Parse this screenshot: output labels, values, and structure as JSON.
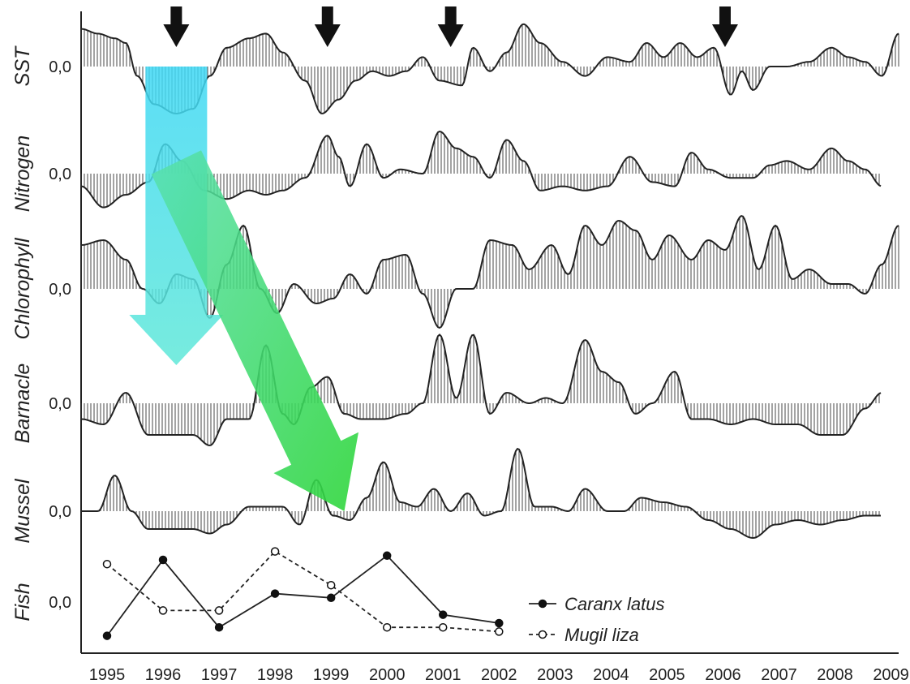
{
  "chart_data": {
    "type": "area",
    "title": "",
    "xlabel": "",
    "ylabel": "",
    "zero_label": "0,0",
    "x_years": [
      "1995",
      "1996",
      "1997",
      "1998",
      "1999",
      "2000",
      "2001",
      "2002",
      "2003",
      "2004",
      "2005",
      "2006",
      "2007",
      "2008",
      "2009"
    ],
    "xlim": [
      1995,
      2009.6
    ],
    "ylim": [
      -1,
      1
    ],
    "arrows_at": [
      1996.7,
      1999.4,
      2001.6,
      2006.5
    ],
    "series": [
      {
        "name": "SST",
        "points": [
          [
            1995,
            0.8
          ],
          [
            1995.3,
            0.7
          ],
          [
            1995.6,
            0.6
          ],
          [
            1995.8,
            0.5
          ],
          [
            1996.0,
            -0.2
          ],
          [
            1996.3,
            -0.8
          ],
          [
            1996.7,
            -1.0
          ],
          [
            1997.0,
            -0.9
          ],
          [
            1997.3,
            -0.2
          ],
          [
            1997.6,
            0.4
          ],
          [
            1998.0,
            0.6
          ],
          [
            1998.3,
            0.7
          ],
          [
            1998.6,
            0.3
          ],
          [
            1999.0,
            -0.3
          ],
          [
            1999.3,
            -1.0
          ],
          [
            1999.6,
            -0.7
          ],
          [
            1999.9,
            -0.3
          ],
          [
            2000.2,
            -0.1
          ],
          [
            2000.5,
            -0.2
          ],
          [
            2000.8,
            -0.1
          ],
          [
            2001.1,
            0.2
          ],
          [
            2001.4,
            -0.3
          ],
          [
            2001.8,
            -0.4
          ],
          [
            2002.0,
            0.4
          ],
          [
            2002.3,
            -0.1
          ],
          [
            2002.6,
            0.3
          ],
          [
            2002.9,
            0.9
          ],
          [
            2003.2,
            0.5
          ],
          [
            2003.6,
            0.1
          ],
          [
            2004.0,
            -0.2
          ],
          [
            2004.4,
            0.2
          ],
          [
            2004.8,
            0.1
          ],
          [
            2005.1,
            0.5
          ],
          [
            2005.4,
            0.2
          ],
          [
            2005.7,
            0.5
          ],
          [
            2006.0,
            0.2
          ],
          [
            2006.3,
            0.4
          ],
          [
            2006.6,
            -0.6
          ],
          [
            2006.8,
            -0.1
          ],
          [
            2007.0,
            -0.5
          ],
          [
            2007.3,
            0.0
          ],
          [
            2007.6,
            0.0
          ],
          [
            2008.0,
            0.1
          ],
          [
            2008.4,
            0.4
          ],
          [
            2008.7,
            0.2
          ],
          [
            2009.0,
            0.1
          ],
          [
            2009.3,
            -0.2
          ],
          [
            2009.6,
            0.7
          ]
        ]
      },
      {
        "name": "Nitrogen",
        "points": [
          [
            1995,
            -0.3
          ],
          [
            1995.4,
            -0.8
          ],
          [
            1995.8,
            -0.5
          ],
          [
            1996.2,
            -0.2
          ],
          [
            1996.5,
            0.7
          ],
          [
            1996.8,
            0.3
          ],
          [
            1997.2,
            -0.4
          ],
          [
            1997.6,
            -0.6
          ],
          [
            1998.0,
            -0.4
          ],
          [
            1998.3,
            -0.5
          ],
          [
            1998.6,
            -0.4
          ],
          [
            1999.0,
            -0.1
          ],
          [
            1999.4,
            0.9
          ],
          [
            1999.6,
            0.4
          ],
          [
            1999.8,
            -0.3
          ],
          [
            2000.1,
            0.7
          ],
          [
            2000.4,
            -0.1
          ],
          [
            2000.7,
            0.1
          ],
          [
            2001.1,
            0.0
          ],
          [
            2001.4,
            1.0
          ],
          [
            2001.7,
            0.6
          ],
          [
            2002.0,
            0.4
          ],
          [
            2002.3,
            -0.1
          ],
          [
            2002.6,
            0.8
          ],
          [
            2002.9,
            0.3
          ],
          [
            2003.2,
            -0.4
          ],
          [
            2003.6,
            -0.3
          ],
          [
            2004.0,
            -0.4
          ],
          [
            2004.4,
            -0.3
          ],
          [
            2004.8,
            0.4
          ],
          [
            2005.2,
            -0.2
          ],
          [
            2005.6,
            -0.3
          ],
          [
            2005.9,
            0.5
          ],
          [
            2006.2,
            0.1
          ],
          [
            2006.6,
            -0.1
          ],
          [
            2007.0,
            -0.1
          ],
          [
            2007.3,
            0.2
          ],
          [
            2007.6,
            0.3
          ],
          [
            2008.0,
            0.1
          ],
          [
            2008.4,
            0.6
          ],
          [
            2008.7,
            0.3
          ],
          [
            2009.0,
            0.1
          ],
          [
            2009.3,
            -0.3
          ]
        ]
      },
      {
        "name": "Chlorophyll",
        "points": [
          [
            1995,
            0.9
          ],
          [
            1995.4,
            1.0
          ],
          [
            1995.8,
            0.6
          ],
          [
            1996.1,
            0.0
          ],
          [
            1996.4,
            -0.3
          ],
          [
            1996.7,
            0.3
          ],
          [
            1997.0,
            0.2
          ],
          [
            1997.3,
            -0.6
          ],
          [
            1997.6,
            0.5
          ],
          [
            1997.9,
            1.3
          ],
          [
            1998.2,
            0.0
          ],
          [
            1998.5,
            -0.5
          ],
          [
            1998.8,
            0.1
          ],
          [
            1999.2,
            -0.3
          ],
          [
            1999.5,
            -0.2
          ],
          [
            1999.8,
            0.3
          ],
          [
            2000.1,
            -0.1
          ],
          [
            2000.4,
            0.6
          ],
          [
            2000.8,
            0.7
          ],
          [
            2001.1,
            -0.1
          ],
          [
            2001.4,
            -0.8
          ],
          [
            2001.7,
            0.0
          ],
          [
            2002.0,
            0.0
          ],
          [
            2002.3,
            1.0
          ],
          [
            2002.7,
            0.9
          ],
          [
            2003.0,
            0.4
          ],
          [
            2003.4,
            0.9
          ],
          [
            2003.7,
            0.3
          ],
          [
            2004.0,
            1.3
          ],
          [
            2004.3,
            0.9
          ],
          [
            2004.6,
            1.4
          ],
          [
            2004.9,
            1.2
          ],
          [
            2005.2,
            0.6
          ],
          [
            2005.5,
            1.1
          ],
          [
            2005.9,
            0.6
          ],
          [
            2006.2,
            1.0
          ],
          [
            2006.5,
            0.8
          ],
          [
            2006.8,
            1.5
          ],
          [
            2007.1,
            0.4
          ],
          [
            2007.4,
            1.3
          ],
          [
            2007.7,
            0.2
          ],
          [
            2008.0,
            0.4
          ],
          [
            2008.4,
            0.1
          ],
          [
            2008.7,
            0.1
          ],
          [
            2009.0,
            -0.1
          ],
          [
            2009.3,
            0.5
          ],
          [
            2009.6,
            1.3
          ]
        ]
      },
      {
        "name": "Barnacle",
        "points": [
          [
            1995,
            -0.3
          ],
          [
            1995.4,
            -0.4
          ],
          [
            1995.8,
            0.2
          ],
          [
            1996.2,
            -0.6
          ],
          [
            1996.6,
            -0.6
          ],
          [
            1997.0,
            -0.6
          ],
          [
            1997.3,
            -0.8
          ],
          [
            1997.6,
            -0.3
          ],
          [
            1998.0,
            -0.3
          ],
          [
            1998.3,
            1.1
          ],
          [
            1998.6,
            -0.2
          ],
          [
            1998.8,
            -0.4
          ],
          [
            1999.1,
            0.3
          ],
          [
            1999.4,
            0.5
          ],
          [
            1999.7,
            -0.2
          ],
          [
            2000.0,
            -0.3
          ],
          [
            2000.4,
            -0.3
          ],
          [
            2000.8,
            -0.2
          ],
          [
            2001.1,
            0.0
          ],
          [
            2001.4,
            1.3
          ],
          [
            2001.7,
            0.1
          ],
          [
            2002.0,
            1.3
          ],
          [
            2002.3,
            -0.2
          ],
          [
            2002.6,
            0.2
          ],
          [
            2003.0,
            0.0
          ],
          [
            2003.3,
            0.1
          ],
          [
            2003.6,
            0.0
          ],
          [
            2004.0,
            1.2
          ],
          [
            2004.3,
            0.6
          ],
          [
            2004.6,
            0.4
          ],
          [
            2004.9,
            -0.2
          ],
          [
            2005.2,
            0.0
          ],
          [
            2005.6,
            0.6
          ],
          [
            2005.9,
            -0.3
          ],
          [
            2006.2,
            -0.3
          ],
          [
            2006.6,
            -0.4
          ],
          [
            2007.0,
            -0.3
          ],
          [
            2007.4,
            -0.4
          ],
          [
            2007.8,
            -0.4
          ],
          [
            2008.2,
            -0.6
          ],
          [
            2008.6,
            -0.6
          ],
          [
            2009.0,
            -0.1
          ],
          [
            2009.3,
            0.2
          ]
        ]
      },
      {
        "name": "Mussel",
        "points": [
          [
            1995,
            0.0
          ],
          [
            1995.3,
            0.0
          ],
          [
            1995.6,
            0.8
          ],
          [
            1995.9,
            0.0
          ],
          [
            1996.2,
            -0.4
          ],
          [
            1996.6,
            -0.4
          ],
          [
            1997.0,
            -0.4
          ],
          [
            1997.3,
            -0.5
          ],
          [
            1997.6,
            -0.3
          ],
          [
            1998.0,
            0.1
          ],
          [
            1998.3,
            0.1
          ],
          [
            1998.6,
            0.1
          ],
          [
            1998.9,
            -0.3
          ],
          [
            1999.2,
            0.7
          ],
          [
            1999.5,
            -0.1
          ],
          [
            1999.8,
            -0.2
          ],
          [
            2000.1,
            0.3
          ],
          [
            2000.4,
            1.1
          ],
          [
            2000.7,
            0.2
          ],
          [
            2001.0,
            0.1
          ],
          [
            2001.3,
            0.5
          ],
          [
            2001.6,
            0.0
          ],
          [
            2001.9,
            0.4
          ],
          [
            2002.2,
            -0.1
          ],
          [
            2002.5,
            0.0
          ],
          [
            2002.8,
            1.4
          ],
          [
            2003.1,
            0.1
          ],
          [
            2003.4,
            0.1
          ],
          [
            2003.7,
            0.0
          ],
          [
            2004.0,
            0.5
          ],
          [
            2004.4,
            0.0
          ],
          [
            2004.7,
            0.0
          ],
          [
            2005.0,
            0.3
          ],
          [
            2005.4,
            0.2
          ],
          [
            2005.8,
            0.1
          ],
          [
            2006.2,
            -0.2
          ],
          [
            2006.6,
            -0.4
          ],
          [
            2007.0,
            -0.6
          ],
          [
            2007.4,
            -0.3
          ],
          [
            2007.8,
            -0.2
          ],
          [
            2008.2,
            -0.3
          ],
          [
            2008.6,
            -0.2
          ],
          [
            2009.0,
            -0.1
          ],
          [
            2009.3,
            -0.1
          ]
        ]
      }
    ],
    "fish": {
      "label": "Fish",
      "series": [
        {
          "name": "Caranx latus",
          "style": "solid-filled",
          "points": [
            [
              1995,
              -0.8
            ],
            [
              1996,
              1.0
            ],
            [
              1997,
              -0.6
            ],
            [
              1998,
              0.2
            ],
            [
              1999,
              0.1
            ],
            [
              2000,
              1.1
            ],
            [
              2001,
              -0.3
            ],
            [
              2002,
              -0.5
            ]
          ]
        },
        {
          "name": "Mugil liza",
          "style": "dashed-open",
          "points": [
            [
              1995,
              0.9
            ],
            [
              1996,
              -0.2
            ],
            [
              1997,
              -0.2
            ],
            [
              1998,
              1.2
            ],
            [
              1999,
              0.4
            ],
            [
              2000,
              -0.6
            ],
            [
              2001,
              -0.6
            ],
            [
              2002,
              -0.7
            ]
          ]
        }
      ]
    },
    "colors": {
      "line": "#222222",
      "hatch": "#333333",
      "arrow": "#111111",
      "cyan_arrow": "#55e8f0",
      "green_arrow": "#3fe06a"
    },
    "grid": false,
    "legend_position": "bottom-right"
  }
}
